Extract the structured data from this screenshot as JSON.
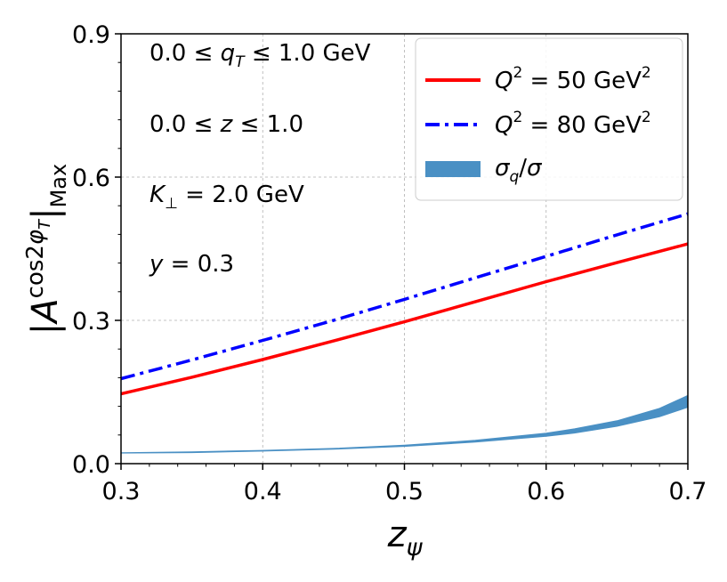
{
  "chart_data": {
    "type": "line",
    "title": "",
    "xlabel": "z_ψ",
    "ylabel": "|A^{cos2φ_T}|_Max",
    "xlim": [
      0.3,
      0.7
    ],
    "ylim": [
      0.0,
      0.9
    ],
    "x_ticks": [
      0.3,
      0.4,
      0.5,
      0.6,
      0.7
    ],
    "y_ticks": [
      0.0,
      0.3,
      0.6,
      0.9
    ],
    "x_tick_labels": [
      "0.3",
      "0.4",
      "0.5",
      "0.6",
      "0.7"
    ],
    "y_tick_labels": [
      "0.0",
      "0.3",
      "0.6",
      "0.9"
    ],
    "grid": true,
    "legend_position": "top-right",
    "series": [
      {
        "name": "Q^2 = 50 GeV^2",
        "style": "solid",
        "color": "#ff0000",
        "x": [
          0.3,
          0.35,
          0.4,
          0.45,
          0.5,
          0.55,
          0.6,
          0.65,
          0.7
        ],
        "values": [
          0.146,
          0.181,
          0.218,
          0.257,
          0.297,
          0.339,
          0.381,
          0.421,
          0.46
        ]
      },
      {
        "name": "Q^2 = 80 GeV^2",
        "style": "dashdot",
        "color": "#0000ff",
        "x": [
          0.3,
          0.35,
          0.4,
          0.45,
          0.5,
          0.55,
          0.6,
          0.65,
          0.7
        ],
        "values": [
          0.178,
          0.217,
          0.258,
          0.3,
          0.344,
          0.389,
          0.434,
          0.479,
          0.523
        ]
      }
    ],
    "band": {
      "name": "σ_q/σ",
      "color": "#4a90c4",
      "x": [
        0.3,
        0.35,
        0.4,
        0.45,
        0.5,
        0.55,
        0.6,
        0.62,
        0.65,
        0.68,
        0.7
      ],
      "lower": [
        0.022,
        0.023,
        0.026,
        0.03,
        0.036,
        0.045,
        0.057,
        0.064,
        0.078,
        0.098,
        0.118
      ],
      "upper": [
        0.023,
        0.025,
        0.028,
        0.032,
        0.039,
        0.049,
        0.064,
        0.073,
        0.09,
        0.116,
        0.143
      ]
    },
    "annotations": [
      "0.0 ≤ q_T ≤ 1.0 GeV",
      "0.0 ≤ z ≤ 1.0",
      "K_⊥ = 2.0 GeV",
      "y = 0.3"
    ]
  }
}
